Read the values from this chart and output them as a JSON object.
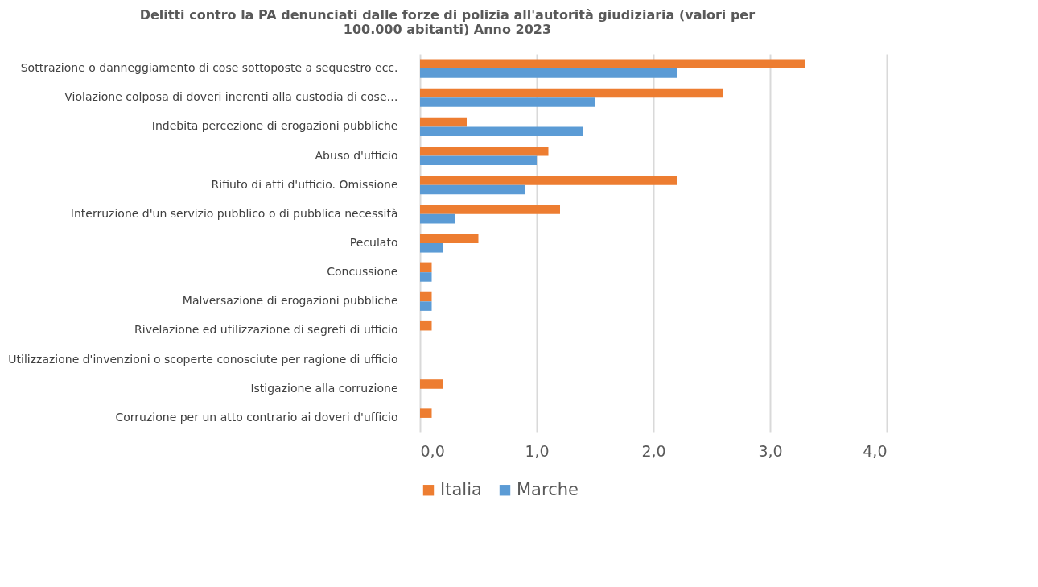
{
  "chart_data": {
    "type": "bar",
    "orientation": "horizontal",
    "title": "Delitti contro la PA denunciati dalle forze di polizia all'autorità giudiziaria (valori per 100.000 abitanti)  Anno 2023",
    "categories": [
      "Sottrazione o danneggiamento di cose sottoposte a sequestro ecc.",
      "Violazione colposa di doveri inerenti alla custodia di cose…",
      "Indebita percezione di erogazioni pubbliche",
      "Abuso d'ufficio",
      "Rifiuto di atti d'ufficio. Omissione",
      "Interruzione d'un servizio pubblico o di pubblica necessità",
      "Peculato",
      "Concussione",
      "Malversazione di erogazioni pubbliche",
      "Rivelazione ed utilizzazione di segreti di ufficio",
      "Utilizzazione d'invenzioni o scoperte conosciute per ragione di ufficio",
      "Istigazione alla corruzione",
      "Corruzione per un atto contrario ai doveri d'ufficio"
    ],
    "series": [
      {
        "name": "Italia",
        "color": "#ed7d31",
        "values": [
          3.3,
          2.6,
          0.4,
          1.1,
          2.2,
          1.2,
          0.5,
          0.1,
          0.1,
          0.1,
          0,
          0.2,
          0.1
        ]
      },
      {
        "name": "Marche",
        "color": "#5b9bd5",
        "values": [
          2.2,
          1.5,
          1.4,
          1.0,
          0.9,
          0.3,
          0.2,
          0.1,
          0.1,
          0,
          0,
          0,
          0
        ]
      }
    ],
    "xlim": [
      0,
      4
    ],
    "xticks": [
      {
        "value": 0,
        "label": "0,0"
      },
      {
        "value": 1,
        "label": "1,0"
      },
      {
        "value": 2,
        "label": "2,0"
      },
      {
        "value": 3,
        "label": "3,0"
      },
      {
        "value": 4,
        "label": "4,0"
      }
    ],
    "grid": "x",
    "legend": "bottom"
  }
}
